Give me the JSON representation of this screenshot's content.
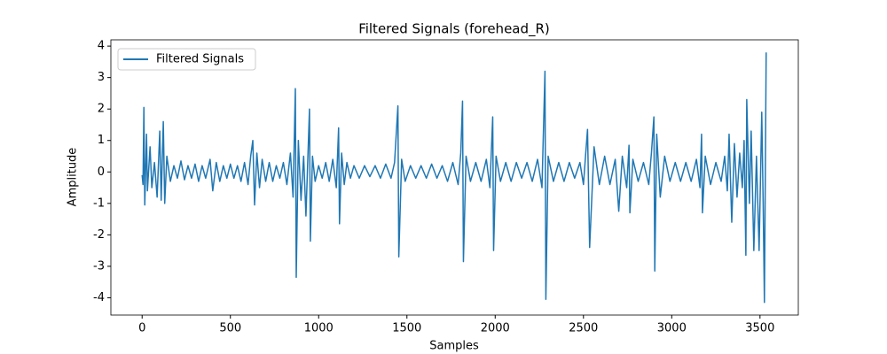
{
  "chart_data": {
    "type": "line",
    "title": "Filtered Signals (forehead_R)",
    "x_label": "Samples",
    "y_label": "Amplitude",
    "x": [
      0,
      5,
      10,
      15,
      25,
      30,
      45,
      55,
      70,
      85,
      100,
      108,
      120,
      128,
      140,
      160,
      180,
      200,
      220,
      240,
      260,
      280,
      300,
      320,
      340,
      360,
      385,
      400,
      420,
      440,
      460,
      480,
      500,
      520,
      540,
      560,
      580,
      600,
      615,
      627,
      637,
      650,
      665,
      680,
      700,
      720,
      740,
      760,
      780,
      800,
      820,
      840,
      855,
      868,
      873,
      885,
      900,
      915,
      928,
      948,
      953,
      965,
      980,
      1000,
      1020,
      1040,
      1060,
      1080,
      1100,
      1113,
      1118,
      1130,
      1145,
      1160,
      1180,
      1200,
      1230,
      1260,
      1290,
      1320,
      1350,
      1380,
      1410,
      1430,
      1449,
      1454,
      1470,
      1490,
      1520,
      1550,
      1580,
      1610,
      1640,
      1670,
      1700,
      1730,
      1760,
      1790,
      1805,
      1815,
      1820,
      1835,
      1860,
      1890,
      1920,
      1950,
      1970,
      1986,
      1991,
      2005,
      2030,
      2060,
      2090,
      2120,
      2150,
      2180,
      2210,
      2240,
      2265,
      2282,
      2287,
      2300,
      2330,
      2360,
      2390,
      2420,
      2450,
      2480,
      2500,
      2513,
      2523,
      2535,
      2560,
      2590,
      2620,
      2650,
      2680,
      2700,
      2720,
      2745,
      2758,
      2763,
      2780,
      2810,
      2840,
      2870,
      2885,
      2899,
      2904,
      2915,
      2935,
      2960,
      2990,
      3020,
      3050,
      3080,
      3110,
      3140,
      3160,
      3169,
      3174,
      3190,
      3220,
      3250,
      3280,
      3300,
      3315,
      3325,
      3340,
      3355,
      3370,
      3385,
      3400,
      3410,
      3420,
      3425,
      3440,
      3450,
      3465,
      3480,
      3495,
      3510,
      3518,
      3525,
      3535
    ],
    "series": [
      {
        "name": "Filtered Signals",
        "color": "#1f77b4",
        "values": [
          -0.1,
          -0.4,
          2.05,
          -1.05,
          1.2,
          -0.6,
          0.8,
          -0.5,
          0.3,
          -0.8,
          1.3,
          -0.9,
          1.6,
          -1.0,
          0.5,
          -0.3,
          0.2,
          -0.2,
          0.35,
          -0.25,
          0.2,
          -0.2,
          0.25,
          -0.3,
          0.2,
          -0.2,
          0.4,
          -0.6,
          0.3,
          -0.3,
          0.2,
          -0.2,
          0.25,
          -0.2,
          0.2,
          -0.3,
          0.3,
          -0.4,
          0.5,
          1.0,
          -1.05,
          0.6,
          -0.5,
          0.4,
          -0.3,
          0.3,
          -0.3,
          0.2,
          -0.2,
          0.3,
          -0.4,
          0.6,
          -0.8,
          2.65,
          -3.35,
          1.0,
          -0.9,
          0.5,
          -1.4,
          2.0,
          -2.2,
          0.5,
          -0.3,
          0.2,
          -0.2,
          0.3,
          -0.3,
          0.4,
          -0.5,
          1.4,
          -1.65,
          0.6,
          -0.4,
          0.3,
          -0.2,
          0.2,
          -0.2,
          0.2,
          -0.15,
          0.2,
          -0.2,
          0.25,
          -0.2,
          0.3,
          2.1,
          -2.7,
          0.4,
          -0.3,
          0.2,
          -0.2,
          0.2,
          -0.2,
          0.25,
          -0.2,
          0.2,
          -0.3,
          0.3,
          -0.4,
          0.6,
          2.25,
          -2.85,
          0.5,
          -0.3,
          0.3,
          -0.3,
          0.4,
          -0.5,
          1.75,
          -2.5,
          0.5,
          -0.3,
          0.3,
          -0.3,
          0.3,
          -0.2,
          0.3,
          -0.3,
          0.4,
          -0.5,
          3.2,
          -4.05,
          0.5,
          -0.3,
          0.3,
          -0.3,
          0.3,
          -0.2,
          0.3,
          -0.4,
          0.6,
          1.35,
          -2.4,
          0.8,
          -0.4,
          0.5,
          -0.4,
          0.4,
          -1.25,
          0.5,
          -0.5,
          0.85,
          -1.3,
          0.4,
          -0.3,
          0.3,
          -0.4,
          0.6,
          1.75,
          -3.15,
          1.2,
          -0.8,
          0.5,
          -0.3,
          0.3,
          -0.3,
          0.3,
          -0.3,
          0.4,
          -0.5,
          1.2,
          -1.3,
          0.5,
          -0.4,
          0.3,
          -0.3,
          0.5,
          -0.6,
          1.2,
          -1.6,
          0.9,
          -0.8,
          0.6,
          -0.5,
          1.0,
          -2.65,
          2.3,
          -1.0,
          1.3,
          -2.5,
          0.5,
          -2.5,
          1.9,
          -1.0,
          -4.15,
          3.8
        ]
      }
    ],
    "xlim": [
      -177,
      3717
    ],
    "ylim": [
      -4.55,
      4.2
    ],
    "xticks": [
      0,
      500,
      1000,
      1500,
      2000,
      2500,
      3000,
      3500
    ],
    "yticks": [
      -4,
      -3,
      -2,
      -1,
      0,
      1,
      2,
      3,
      4
    ],
    "legend": "upper left"
  }
}
